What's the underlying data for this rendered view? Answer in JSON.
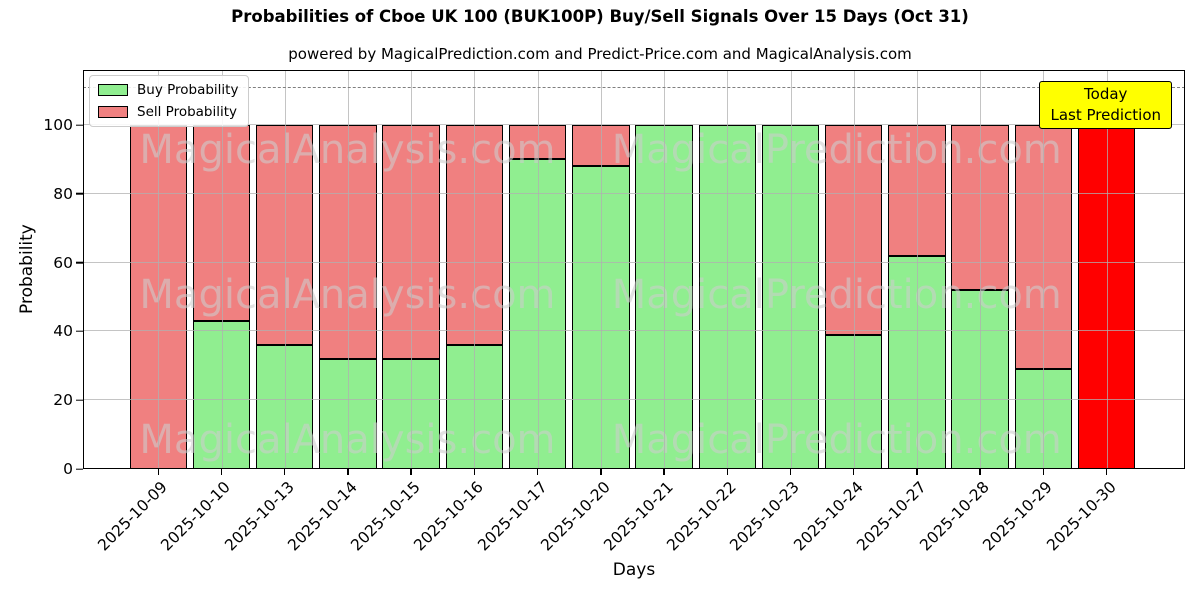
{
  "header": {
    "title": "Probabilities of Cboe UK 100 (BUK100P) Buy/Sell Signals Over 15 Days (Oct 31)",
    "subtitle": "powered by MagicalPrediction.com and Predict-Price.com and MagicalAnalysis.com"
  },
  "legend": {
    "items": [
      {
        "label": "Buy Probability",
        "color": "#90ee90"
      },
      {
        "label": "Sell Probability",
        "color": "#f08080"
      }
    ]
  },
  "annotation": {
    "line1": "Today",
    "line2": "Last Prediction",
    "bg_color": "#ffff00"
  },
  "watermarks": {
    "left_text": "MagicalAnalysis.com",
    "right_text": "MagicalPrediction.com"
  },
  "colors": {
    "buy": "#90ee90",
    "sell": "#f08080",
    "final_bar": "#ff0000",
    "grid": "#b0b0b0",
    "dashed_line": "#7f7f7f",
    "annotation_bg": "#ffff00"
  },
  "chart_data": {
    "type": "bar",
    "stacked": true,
    "title": "Probabilities of Cboe UK 100 (BUK100P) Buy/Sell Signals Over 15 Days (Oct 31)",
    "xlabel": "Days",
    "ylabel": "Probability",
    "categories": [
      "2025-10-09",
      "2025-10-10",
      "2025-10-13",
      "2025-10-14",
      "2025-10-15",
      "2025-10-16",
      "2025-10-17",
      "2025-10-20",
      "2025-10-21",
      "2025-10-22",
      "2025-10-23",
      "2025-10-24",
      "2025-10-27",
      "2025-10-28",
      "2025-10-29",
      "2025-10-30"
    ],
    "series": [
      {
        "name": "Buy Probability",
        "color": "#90ee90",
        "values": [
          0,
          43,
          36,
          32,
          32,
          36,
          90,
          88,
          100,
          100,
          100,
          39,
          62,
          52,
          29,
          0
        ]
      },
      {
        "name": "Sell Probability",
        "color": "#f08080",
        "values": [
          100,
          57,
          64,
          68,
          68,
          64,
          10,
          12,
          0,
          0,
          0,
          61,
          38,
          48,
          71,
          100
        ]
      }
    ],
    "final_bar_index": 15,
    "final_bar_color": "#ff0000",
    "final_bar_note": "Today / Last Prediction",
    "yticks": [
      0,
      20,
      40,
      60,
      80,
      100
    ],
    "ylim": [
      0,
      116
    ],
    "dashed_line_y": 110.7,
    "grid": true,
    "legend_position": "upper left",
    "xtick_rotation": 45
  }
}
